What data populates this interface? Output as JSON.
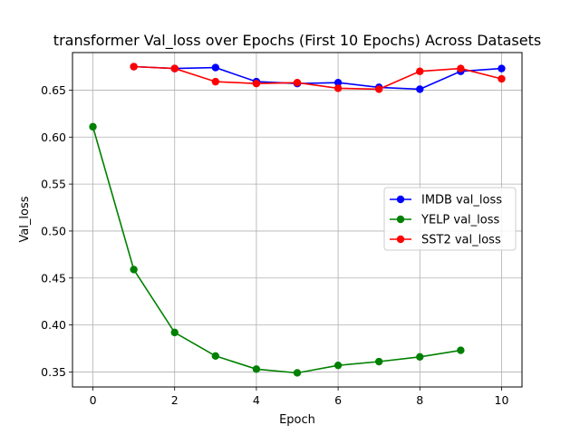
{
  "chart_data": {
    "type": "line",
    "title": "transformer Val_loss over Epochs (First 10 Epochs) Across Datasets",
    "xlabel": "Epoch",
    "ylabel": "Val_loss",
    "xlim": [
      -0.5,
      10.5
    ],
    "ylim": [
      0.334,
      0.69
    ],
    "xticks": [
      0,
      2,
      4,
      6,
      8,
      10
    ],
    "yticks": [
      0.35,
      0.4,
      0.45,
      0.5,
      0.55,
      0.6,
      0.65
    ],
    "grid": true,
    "legend_position": "center-right",
    "series": [
      {
        "name": "IMDB val_loss",
        "color": "#0000ff",
        "x": [
          1,
          2,
          3,
          4,
          5,
          6,
          7,
          8,
          9,
          10
        ],
        "values": [
          0.675,
          0.673,
          0.674,
          0.659,
          0.657,
          0.658,
          0.653,
          0.651,
          0.67,
          0.673
        ]
      },
      {
        "name": "YELP val_loss",
        "color": "#008000",
        "x": [
          0,
          1,
          2,
          3,
          4,
          5,
          6,
          7,
          8,
          9
        ],
        "values": [
          0.611,
          0.459,
          0.392,
          0.367,
          0.353,
          0.349,
          0.357,
          0.361,
          0.366,
          0.373
        ]
      },
      {
        "name": "SST2 val_loss",
        "color": "#ff0000",
        "x": [
          1,
          2,
          3,
          4,
          5,
          6,
          7,
          8,
          9,
          10
        ],
        "values": [
          0.675,
          0.673,
          0.659,
          0.657,
          0.658,
          0.652,
          0.651,
          0.67,
          0.673,
          0.662
        ]
      }
    ]
  }
}
